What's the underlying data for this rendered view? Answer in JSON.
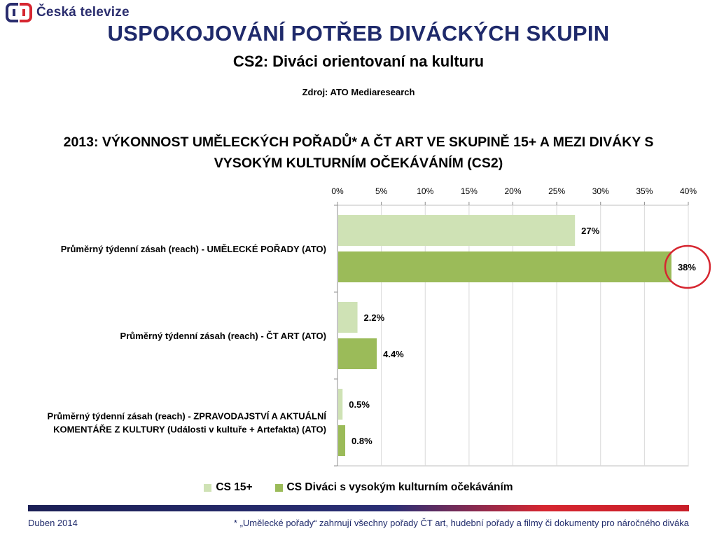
{
  "header": {
    "logo_text": "Česká televize",
    "title": "USPOKOJOVÁNÍ POTŘEB DIVÁCKÝCH SKUPIN",
    "subtitle": "CS2: Diváci orientovaní na kulturu",
    "source": "Zdroj: ATO Mediaresearch"
  },
  "chart_data": {
    "type": "bar",
    "orientation": "horizontal",
    "title": "2013: VÝKONNOST UMĚLECKÝCH POŘADŮ* A ČT ART VE SKUPINĚ 15+ A MEZI DIVÁKY S VYSOKÝM KULTURNÍM OČEKÁVÁNÍM (CS2)",
    "categories": [
      "Průměrný týdenní zásah (reach) - UMĚLECKÉ POŘADY (ATO)",
      "Průměrný týdenní zásah (reach) - ČT ART (ATO)",
      "Průměrný týdenní zásah (reach) - ZPRAVODAJSTVÍ A AKTUÁLNÍ KOMENTÁŘE Z KULTURY (Události v kultuře + Artefakta) (ATO)"
    ],
    "category_lines": [
      [
        "Průměrný týdenní zásah (reach) - UMĚLECKÉ POŘADY (ATO)"
      ],
      [
        "Průměrný týdenní zásah (reach) - ČT ART (ATO)"
      ],
      [
        "Průměrný týdenní zásah (reach) - ZPRAVODAJSTVÍ A AKTUÁLNÍ",
        "KOMENTÁŘE Z KULTURY (Události v kultuře + Artefakta) (ATO)"
      ]
    ],
    "series": [
      {
        "name": "CS 15+",
        "values": [
          27,
          2.2,
          0.5
        ],
        "labels": [
          "27%",
          "2.2%",
          "0.5%"
        ],
        "color": "#cfe2b5"
      },
      {
        "name": "CS Diváci s vysokým kulturním očekáváním",
        "values": [
          38,
          4.4,
          0.8
        ],
        "labels": [
          "38%",
          "4.4%",
          "0.8%"
        ],
        "color": "#9bbb59"
      }
    ],
    "xlim": [
      0,
      40
    ],
    "ticks": [
      0,
      5,
      10,
      15,
      20,
      25,
      30,
      35,
      40
    ],
    "tick_labels": [
      "0%",
      "5%",
      "10%",
      "15%",
      "20%",
      "25%",
      "30%",
      "35%",
      "40%"
    ],
    "xaxis_position": "top",
    "grid": true,
    "legend_position": "bottom",
    "highlight": {
      "series": 1,
      "category": 0,
      "shape": "circle",
      "color": "#d62630"
    }
  },
  "footer": {
    "date": "Duben 2014",
    "note": "* „Umělecké pořady“ zahrnují všechny pořady ČT art, hudební pořady a filmy či dokumenty pro náročného diváka"
  }
}
